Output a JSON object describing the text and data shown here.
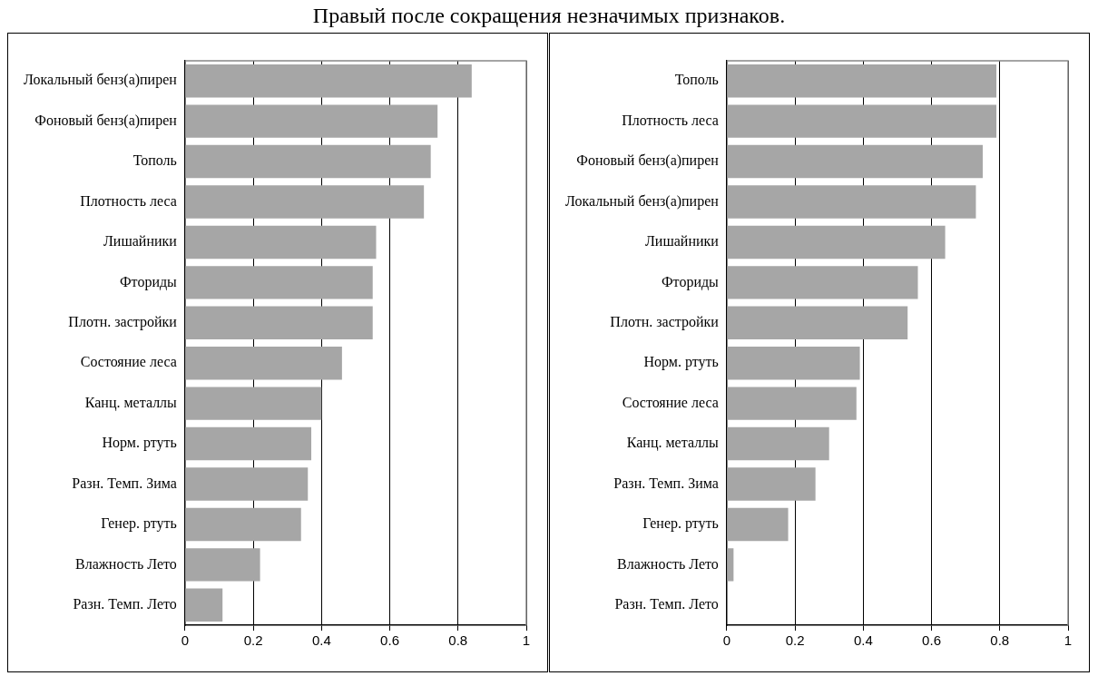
{
  "chart_data": [
    {
      "type": "bar",
      "orientation": "horizontal",
      "title": "Правый после сокращения незначимых признаков.",
      "categories": [
        "Локальный бенз(а)пирен",
        "Фоновый бенз(а)пирен",
        "Тополь",
        "Плотность леса",
        "Лишайники",
        "Фториды",
        "Плотн. застройки",
        "Состояние леса",
        "Канц. металлы",
        "Норм. ртуть",
        "Разн. Темп. Зима",
        "Генер. ртуть",
        "Влажность Лето",
        "Разн. Темп. Лето"
      ],
      "values": [
        0.84,
        0.74,
        0.72,
        0.7,
        0.56,
        0.55,
        0.55,
        0.46,
        0.4,
        0.37,
        0.36,
        0.34,
        0.22,
        0.11
      ],
      "color": "#a6a6a6",
      "xlim": [
        0,
        1
      ],
      "xticks": [
        0,
        0.2,
        0.4,
        0.6,
        0.8,
        1
      ],
      "grid": "x",
      "legend": false
    },
    {
      "type": "bar",
      "orientation": "horizontal",
      "categories": [
        "Тополь",
        "Плотность леса",
        "Фоновый бенз(а)пирен",
        "Локальный бенз(а)пирен",
        "Лишайники",
        "Фториды",
        "Плотн. застройки",
        "Норм. ртуть",
        "Состояние леса",
        "Канц. металлы",
        "Разн. Темп. Зима",
        "Генер. ртуть",
        "Влажность Лето",
        "Разн. Темп. Лето"
      ],
      "values": [
        0.79,
        0.79,
        0.75,
        0.73,
        0.64,
        0.56,
        0.53,
        0.39,
        0.38,
        0.3,
        0.26,
        0.18,
        0.02,
        0
      ],
      "color": "#a6a6a6",
      "xlim": [
        0,
        1
      ],
      "xticks": [
        0,
        0.2,
        0.4,
        0.6,
        0.8,
        1
      ],
      "grid": "x",
      "legend": false
    }
  ]
}
